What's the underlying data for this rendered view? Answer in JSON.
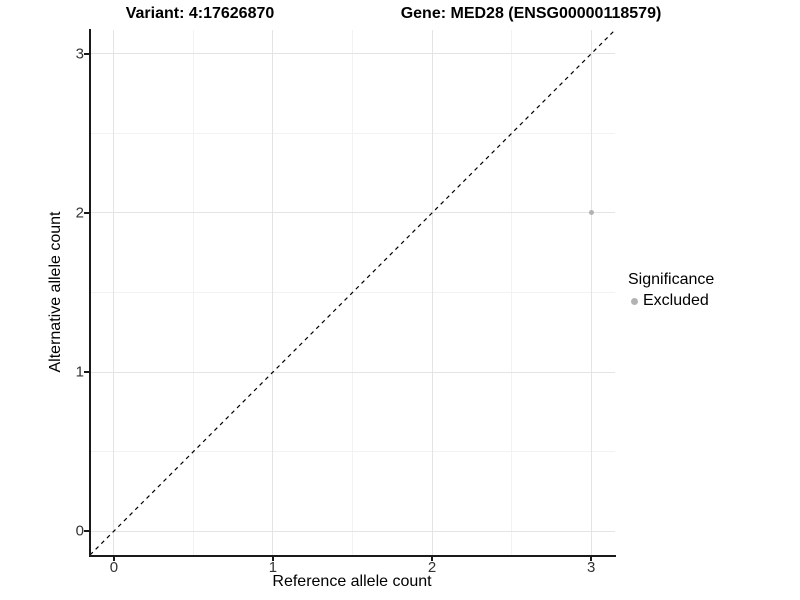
{
  "chart_data": {
    "type": "scatter",
    "title_left": "Variant: 4:17626870",
    "title_right": "Gene: MED28 (ENSG00000118579)",
    "xlabel": "Reference allele count",
    "ylabel": "Alternative allele count",
    "xlim": [
      -0.15,
      3.15
    ],
    "ylim": [
      -0.15,
      3.15
    ],
    "x_ticks": [
      0,
      1,
      2,
      3
    ],
    "y_ticks": [
      0,
      1,
      2,
      3
    ],
    "x_minor_ticks": [
      0.5,
      1.5,
      2.5
    ],
    "y_minor_ticks": [
      0.5,
      1.5,
      2.5
    ],
    "grid": true,
    "points": [
      {
        "x": 3,
        "y": 2,
        "series": "Excluded"
      }
    ],
    "identity_line": {
      "style": "dashed",
      "from": [
        -0.15,
        -0.15
      ],
      "to": [
        3.15,
        3.15
      ]
    },
    "legend": {
      "title": "Significance",
      "position": "right",
      "entries": [
        {
          "label": "Excluded",
          "color": "#b3b3b3"
        }
      ]
    },
    "colors": {
      "background": "#ffffff",
      "point": "#b3b3b3",
      "grid_major": "#e4e4e4",
      "grid_minor": "#f2f2f2",
      "axis_line": "#1a1a1a",
      "tick_label": "#333333",
      "text": "#000000",
      "identity_line": "#000000"
    }
  }
}
